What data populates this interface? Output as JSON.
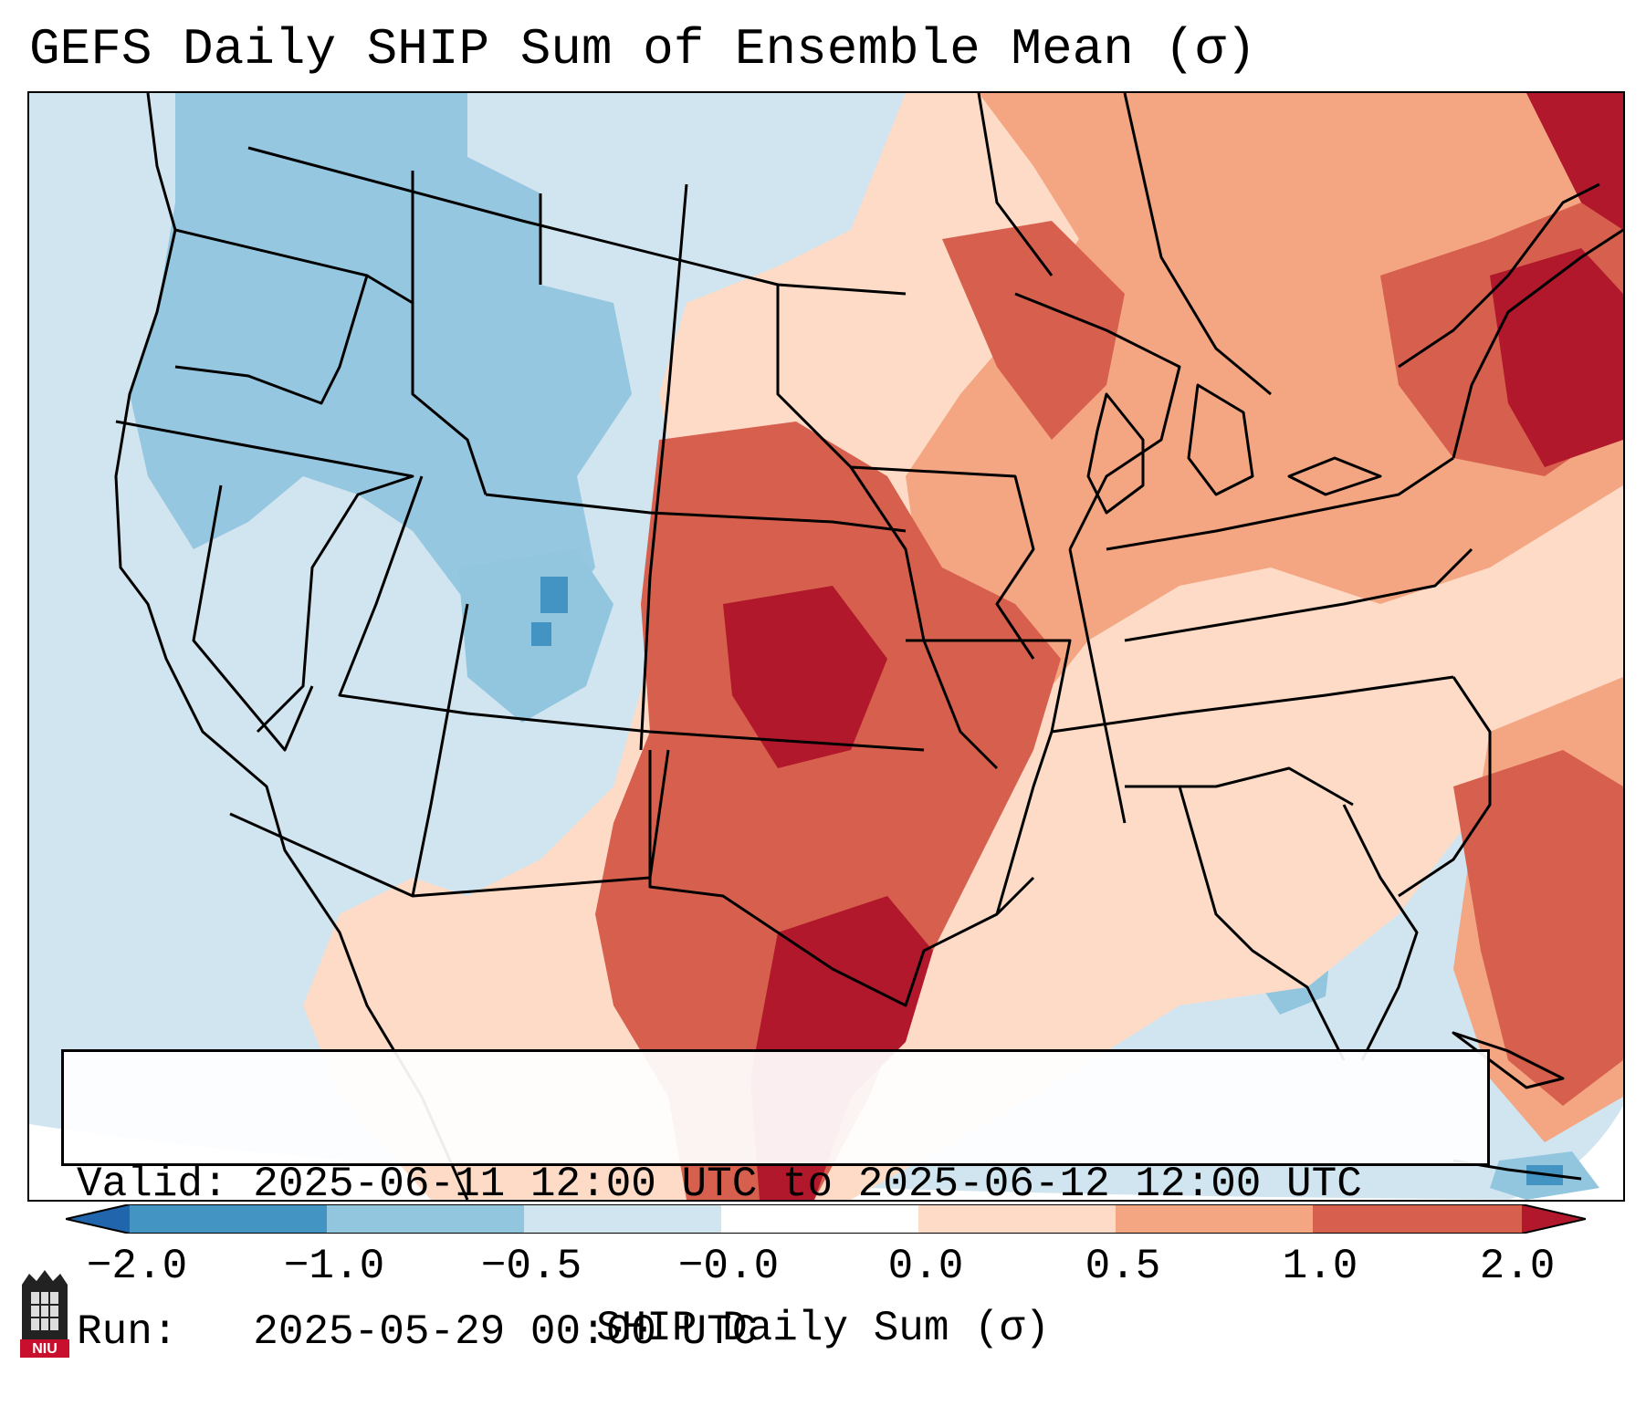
{
  "title": "GEFS Daily SHIP Sum of Ensemble Mean (σ)",
  "info": {
    "valid": "Valid: 2025-06-11 12:00 UTC to 2025-06-12 12:00 UTC",
    "run": "Run:   2025-05-29 00:00 UTC"
  },
  "colorbar": {
    "label": "SHIP Daily Sum (σ)",
    "ticks": [
      "−2.0",
      "−1.0",
      "−0.5",
      "−0.0",
      "0.0",
      "0.5",
      "1.0",
      "2.0"
    ],
    "bins": [
      {
        "from": -2.0,
        "to": -1.0,
        "color": "#4393c3"
      },
      {
        "from": -1.0,
        "to": -0.5,
        "color": "#92c5de"
      },
      {
        "from": -0.5,
        "to": -0.0,
        "color": "#d1e5f0"
      },
      {
        "from": -0.0,
        "to": 0.0,
        "color": "#ffffff"
      },
      {
        "from": 0.0,
        "to": 0.5,
        "color": "#fddbc7"
      },
      {
        "from": 0.5,
        "to": 1.0,
        "color": "#f4a582"
      },
      {
        "from": 1.0,
        "to": 2.0,
        "color": "#d6604d"
      }
    ],
    "under_color": "#2166ac",
    "over_color": "#b2182b"
  },
  "logo": {
    "text": "NIU",
    "color": "#c8102e"
  }
}
